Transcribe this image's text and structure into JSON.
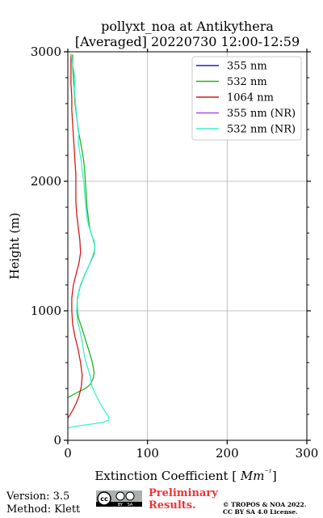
{
  "chart_data": {
    "type": "line",
    "title": "pollyxt_noa at Antikythera",
    "subtitle": "[Averaged] 20220730 12:00-12:59",
    "xlabel": "Extinction Coefficient [Mm⁻¹]",
    "ylabel": "Height (m)",
    "xlim": [
      0,
      300
    ],
    "ylim": [
      0,
      3000
    ],
    "x_ticks": [
      "0",
      "100",
      "200",
      "300"
    ],
    "y_ticks": [
      "0",
      "1000",
      "2000",
      "3000"
    ],
    "grid": true,
    "legend_position": "top-right",
    "series": [
      {
        "name": "355 nm",
        "color": "#1f1fd6",
        "points": []
      },
      {
        "name": "532 nm",
        "color": "#22b422",
        "points": [
          [
            0,
            330
          ],
          [
            12,
            370
          ],
          [
            22,
            400
          ],
          [
            28,
            430
          ],
          [
            32,
            480
          ],
          [
            33,
            520
          ],
          [
            32,
            560
          ],
          [
            30,
            620
          ],
          [
            26,
            700
          ],
          [
            22,
            780
          ],
          [
            18,
            860
          ],
          [
            13,
            950
          ],
          [
            12,
            1000
          ],
          [
            12,
            1100
          ],
          [
            16,
            1200
          ],
          [
            22,
            1290
          ],
          [
            28,
            1370
          ],
          [
            33,
            1440
          ],
          [
            34,
            1490
          ],
          [
            32,
            1550
          ],
          [
            28,
            1620
          ],
          [
            26,
            1700
          ],
          [
            24,
            1800
          ],
          [
            23,
            1900
          ],
          [
            22,
            2000
          ],
          [
            21,
            2100
          ],
          [
            19,
            2200
          ],
          [
            16,
            2300
          ],
          [
            13,
            2400
          ],
          [
            11,
            2500
          ],
          [
            9,
            2600
          ],
          [
            8,
            2700
          ],
          [
            7,
            2800
          ],
          [
            6,
            2900
          ],
          [
            6,
            2980
          ]
        ]
      },
      {
        "name": "1064 nm",
        "color": "#d41a1a",
        "points": [
          [
            0,
            170
          ],
          [
            6,
            230
          ],
          [
            10,
            280
          ],
          [
            14,
            340
          ],
          [
            17,
            420
          ],
          [
            18,
            500
          ],
          [
            16,
            600
          ],
          [
            13,
            700
          ],
          [
            9,
            800
          ],
          [
            6,
            900
          ],
          [
            5,
            1000
          ],
          [
            5,
            1100
          ],
          [
            7,
            1200
          ],
          [
            11,
            1300
          ],
          [
            14,
            1370
          ],
          [
            16,
            1450
          ],
          [
            15,
            1550
          ],
          [
            13,
            1650
          ],
          [
            11,
            1750
          ],
          [
            10,
            1850
          ],
          [
            10,
            1950
          ],
          [
            10,
            2050
          ],
          [
            9,
            2150
          ],
          [
            8,
            2250
          ],
          [
            7,
            2350
          ],
          [
            6,
            2450
          ],
          [
            5,
            2550
          ],
          [
            5,
            2650
          ],
          [
            4,
            2750
          ],
          [
            4,
            2850
          ],
          [
            4,
            2980
          ]
        ]
      },
      {
        "name": "355 nm (NR)",
        "color": "#a54fe0",
        "points": []
      },
      {
        "name": "532 nm (NR)",
        "color": "#3ef0cc",
        "points": [
          [
            0,
            95
          ],
          [
            12,
            110
          ],
          [
            30,
            125
          ],
          [
            45,
            140
          ],
          [
            51,
            155
          ],
          [
            52,
            175
          ],
          [
            48,
            210
          ],
          [
            42,
            270
          ],
          [
            36,
            340
          ],
          [
            30,
            420
          ],
          [
            28,
            500
          ],
          [
            25,
            560
          ],
          [
            22,
            620
          ],
          [
            20,
            680
          ],
          [
            18,
            760
          ],
          [
            15,
            850
          ],
          [
            12,
            930
          ],
          [
            11,
            1000
          ],
          [
            12,
            1080
          ],
          [
            14,
            1160
          ],
          [
            19,
            1240
          ],
          [
            25,
            1330
          ],
          [
            31,
            1420
          ],
          [
            34,
            1480
          ],
          [
            33,
            1540
          ],
          [
            29,
            1600
          ],
          [
            26,
            1660
          ],
          [
            24,
            1720
          ],
          [
            23,
            1780
          ],
          [
            22,
            1850
          ],
          [
            21,
            1920
          ],
          [
            20,
            2000
          ],
          [
            18,
            2080
          ],
          [
            17,
            2150
          ],
          [
            15,
            2220
          ],
          [
            13,
            2300
          ],
          [
            14,
            2380
          ],
          [
            12,
            2450
          ],
          [
            11,
            2520
          ],
          [
            10,
            2580
          ],
          [
            9,
            2650
          ],
          [
            8,
            2720
          ],
          [
            9,
            2780
          ],
          [
            8,
            2840
          ],
          [
            6,
            2900
          ],
          [
            5,
            2950
          ],
          [
            4,
            2985
          ]
        ]
      }
    ]
  },
  "footer": {
    "version": "Version: 3.5",
    "method": "Method: Klett",
    "cc_label": "cc",
    "cc_by": "BY",
    "cc_sa": "SA",
    "preliminary_line1": "Preliminary",
    "preliminary_line2": "Results.",
    "copyright_line1": "© TROPOS & NOA 2022.",
    "copyright_line2": "CC BY SA 4.0 License."
  }
}
